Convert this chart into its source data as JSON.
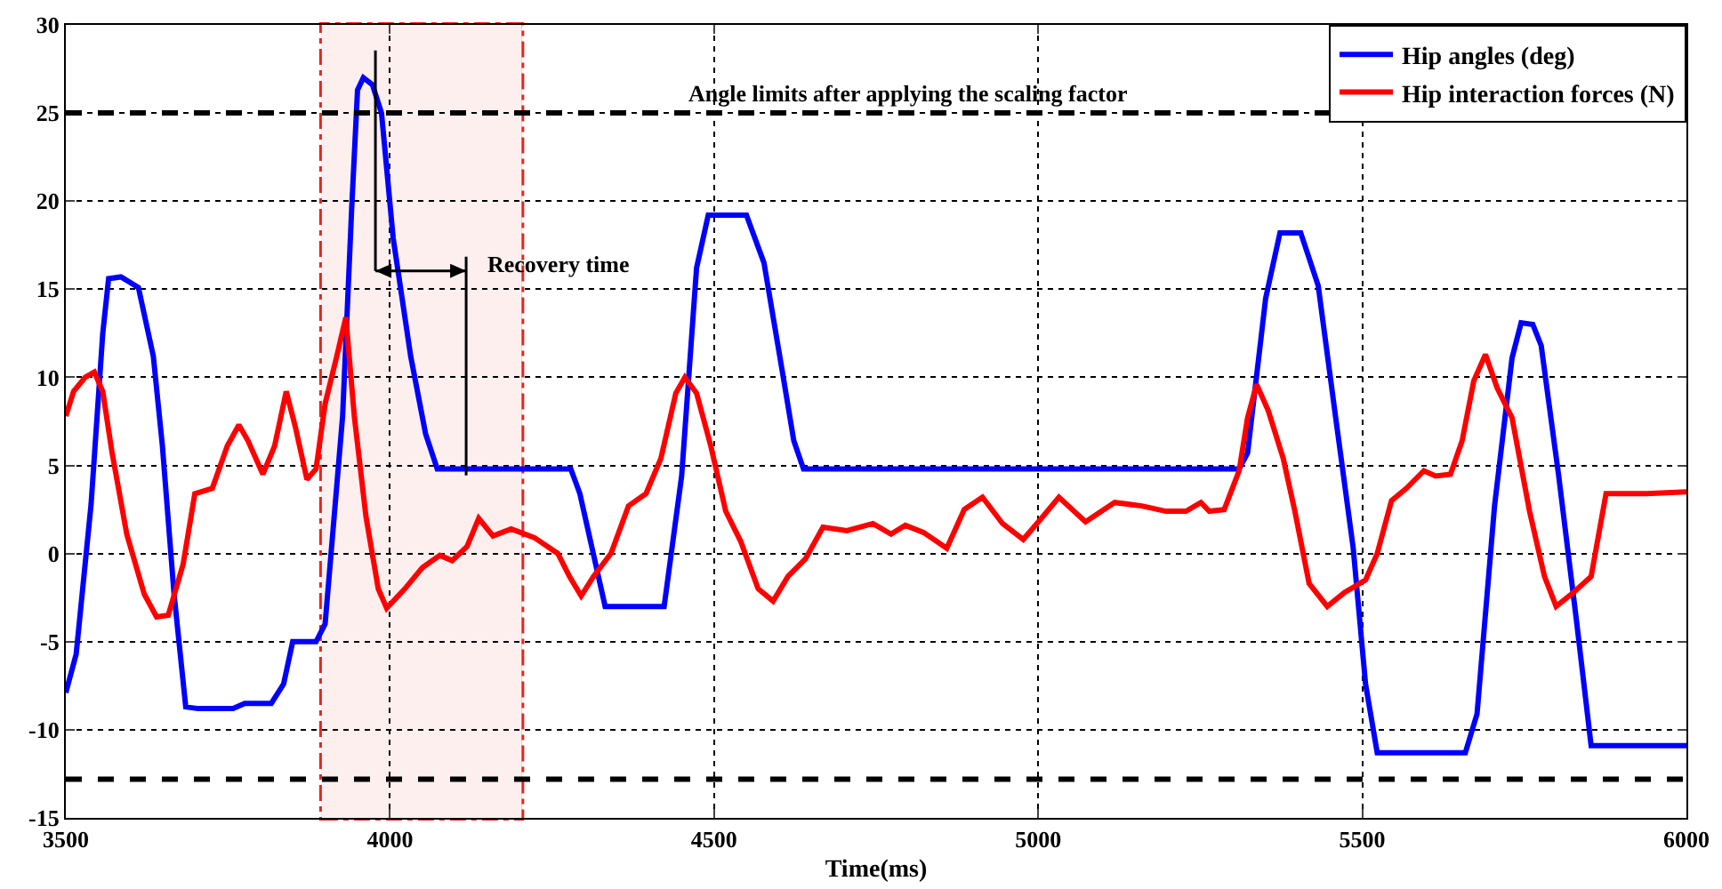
{
  "chart_data": {
    "type": "line",
    "xlabel": "Time(ms)",
    "xlim": [
      3500,
      6000
    ],
    "xticks": [
      3500,
      4000,
      4500,
      5000,
      5500,
      6000
    ],
    "ylim": [
      -15,
      30
    ],
    "yticks": [
      -15,
      -10,
      -5,
      0,
      5,
      10,
      15,
      20,
      25,
      30
    ],
    "grid": true,
    "legend": "top right",
    "line_style": "solid",
    "marker": "none",
    "series": [
      {
        "name": "Hip angles (deg)",
        "color": "#0000ff",
        "x": [
          3500,
          3516,
          3539,
          3557,
          3566,
          3585,
          3612,
          3635,
          3649,
          3667,
          3685,
          3704,
          3758,
          3776,
          3817,
          3836,
          3850,
          3886,
          3900,
          3927,
          3941,
          3950,
          3959,
          3973,
          3987,
          4005,
          4032,
          4055,
          4073,
          4279,
          4293,
          4332,
          4423,
          4450,
          4473,
          4491,
          4550,
          4577,
          4605,
          4623,
          4638,
          5310,
          5323,
          5351,
          5373,
          5405,
          5432,
          5459,
          5486,
          5505,
          5523,
          5659,
          5677,
          5704,
          5731,
          5745,
          5763,
          5776,
          5803,
          5831,
          5853,
          6000
        ],
        "values": [
          -7.9,
          -5.7,
          2.8,
          12.5,
          15.6,
          15.7,
          15.1,
          11.2,
          6.1,
          -2.3,
          -8.7,
          -8.8,
          -8.8,
          -8.5,
          -8.5,
          -7.4,
          -5,
          -5,
          -4,
          7.8,
          19.6,
          26.3,
          27,
          26.6,
          25,
          17.9,
          11.2,
          6.8,
          4.8,
          4.8,
          3.4,
          -3,
          -3,
          4.4,
          16.2,
          19.2,
          19.2,
          16.5,
          10.4,
          6.4,
          4.8,
          4.8,
          5.7,
          14.5,
          18.2,
          18.2,
          15.2,
          7.7,
          0.3,
          -7.4,
          -11.3,
          -11.3,
          -9.1,
          2.7,
          11.1,
          13.1,
          13,
          11.8,
          4.4,
          -4,
          -10.9,
          -10.9
        ]
      },
      {
        "name": "Hip interaction forces (N)",
        "color": "#ff0000",
        "x": [
          3500,
          3512,
          3530,
          3544,
          3557,
          3571,
          3594,
          3621,
          3640,
          3658,
          3681,
          3699,
          3726,
          3749,
          3767,
          3781,
          3804,
          3822,
          3840,
          3854,
          3872,
          3886,
          3900,
          3918,
          3932,
          3945,
          3963,
          3982,
          3995,
          4023,
          4050,
          4077,
          4096,
          4119,
          4137,
          4159,
          4187,
          4223,
          4259,
          4277,
          4295,
          4314,
          4341,
          4368,
          4395,
          4418,
          4441,
          4455,
          4473,
          4495,
          4518,
          4541,
          4568,
          4591,
          4614,
          4641,
          4668,
          4705,
          4745,
          4773,
          4795,
          4823,
          4859,
          4886,
          4914,
          4945,
          4977,
          5005,
          5032,
          5073,
          5118,
          5160,
          5197,
          5228,
          5251,
          5264,
          5287,
          5310,
          5323,
          5337,
          5355,
          5378,
          5396,
          5418,
          5446,
          5473,
          5505,
          5523,
          5545,
          5568,
          5595,
          5613,
          5636,
          5654,
          5672,
          5690,
          5708,
          5731,
          5758,
          5781,
          5799,
          5826,
          5853,
          5876,
          5894,
          5939,
          6000
        ],
        "values": [
          7.8,
          9.2,
          10,
          10.3,
          9.2,
          5.8,
          1.1,
          -2.3,
          -3.6,
          -3.5,
          -0.6,
          3.4,
          3.7,
          6.1,
          7.3,
          6.4,
          4.5,
          6.1,
          9.2,
          7.2,
          4.2,
          4.8,
          8.5,
          11.2,
          13.4,
          7.8,
          2.1,
          -2,
          -3.1,
          -2,
          -0.8,
          -0.1,
          -0.4,
          0.4,
          2,
          1,
          1.4,
          0.9,
          0,
          -1.3,
          -2.4,
          -1.3,
          0,
          2.7,
          3.4,
          5.4,
          9.1,
          10,
          9.1,
          6.1,
          2.4,
          0.7,
          -2,
          -2.7,
          -1.3,
          -0.3,
          1.5,
          1.3,
          1.7,
          1.1,
          1.6,
          1.2,
          0.3,
          2.5,
          3.2,
          1.7,
          0.8,
          2,
          3.2,
          1.8,
          2.9,
          2.7,
          2.4,
          2.4,
          2.9,
          2.4,
          2.5,
          4.7,
          7.7,
          9.6,
          8.1,
          5.4,
          2.4,
          -1.7,
          -3,
          -2.2,
          -1.5,
          0,
          3,
          3.7,
          4.7,
          4.4,
          4.5,
          6.4,
          9.8,
          11.3,
          9.4,
          7.7,
          2.4,
          -1.3,
          -3,
          -2.2,
          -1.3,
          3.4,
          3.4,
          3.4,
          3.5
        ]
      }
    ],
    "ref_lines": [
      {
        "axis": "y",
        "value": 25,
        "label": "Angle limits after applying the scaling factor",
        "color": "#000000",
        "line_style": "dashed"
      },
      {
        "axis": "y",
        "value": -12.8,
        "label": null,
        "color": "#000000",
        "line_style": "dashed"
      }
    ],
    "bands": [
      {
        "axis": "x",
        "from": 3895,
        "to": 4203,
        "label": null,
        "color": "#e8231c"
      }
    ],
    "annotations": [
      "Recovery time"
    ]
  }
}
